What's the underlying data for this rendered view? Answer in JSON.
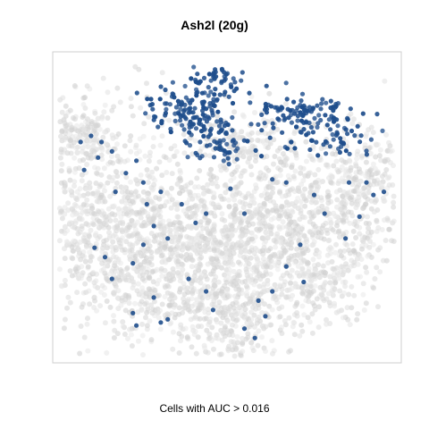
{
  "chart_data": {
    "type": "scatter",
    "title": "Ash2l (20g)",
    "caption": "Cells with AUC > 0.016",
    "xlabel": "",
    "ylabel": "",
    "xlim": [
      0,
      100
    ],
    "ylim": [
      0,
      100
    ],
    "grid": false,
    "axes_ticks": false,
    "colors": {
      "background_cells": "#d9d9d9",
      "positive_cells": "#1f4e8c",
      "frame": "#cfcfcf"
    },
    "background_regions": [
      [
        7,
        52,
        15,
        18,
        650
      ],
      [
        8,
        74,
        6,
        4,
        120
      ],
      [
        20,
        36,
        12,
        10,
        300
      ],
      [
        35,
        40,
        14,
        12,
        350
      ],
      [
        35,
        20,
        12,
        8,
        220
      ],
      [
        55,
        48,
        12,
        10,
        300
      ],
      [
        56,
        70,
        10,
        6,
        160
      ],
      [
        54,
        12,
        6,
        6,
        160
      ],
      [
        70,
        37,
        12,
        10,
        300
      ],
      [
        73,
        25,
        9,
        7,
        180
      ],
      [
        81,
        52,
        12,
        10,
        300
      ],
      [
        90,
        60,
        6,
        8,
        150
      ],
      [
        45,
        32,
        10,
        12,
        250
      ]
    ],
    "positive_regions": [
      [
        47,
        90,
        4,
        3,
        55
      ],
      [
        36,
        83,
        5,
        3,
        55
      ],
      [
        43,
        77,
        5,
        4,
        70
      ],
      [
        49,
        70,
        4,
        3,
        45
      ],
      [
        75,
        80,
        7,
        3,
        60
      ],
      [
        81,
        73,
        6,
        4,
        55
      ],
      [
        67,
        81,
        5,
        4,
        40
      ]
    ],
    "positive_scatter_points": [
      [
        8,
        71
      ],
      [
        11,
        73
      ],
      [
        14,
        71
      ],
      [
        17,
        68
      ],
      [
        9,
        62
      ],
      [
        13,
        66
      ],
      [
        21,
        61
      ],
      [
        24,
        65
      ],
      [
        18,
        55
      ],
      [
        26,
        58
      ],
      [
        31,
        55
      ],
      [
        29,
        44
      ],
      [
        41,
        45
      ],
      [
        33,
        40
      ],
      [
        37,
        51
      ],
      [
        26,
        38
      ],
      [
        12,
        37
      ],
      [
        15,
        34
      ],
      [
        17,
        27
      ],
      [
        23,
        32
      ],
      [
        29,
        21
      ],
      [
        23,
        16
      ],
      [
        24,
        12
      ],
      [
        39,
        27
      ],
      [
        44,
        23
      ],
      [
        46,
        17
      ],
      [
        31,
        13
      ],
      [
        33,
        14
      ],
      [
        61,
        15
      ],
      [
        55,
        11
      ],
      [
        58,
        8
      ],
      [
        63,
        23
      ],
      [
        67,
        31
      ],
      [
        71,
        38
      ],
      [
        84,
        40
      ],
      [
        88,
        47
      ],
      [
        90,
        58
      ],
      [
        92,
        54
      ],
      [
        95,
        55
      ],
      [
        78,
        48
      ],
      [
        75,
        54
      ],
      [
        85,
        58
      ],
      [
        67,
        58
      ],
      [
        51,
        56
      ],
      [
        55,
        48
      ],
      [
        72,
        26
      ],
      [
        27,
        51
      ],
      [
        63,
        59
      ],
      [
        59,
        20
      ],
      [
        44,
        48
      ]
    ]
  }
}
